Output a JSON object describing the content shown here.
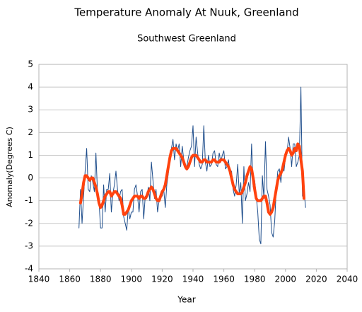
{
  "chart_data": {
    "type": "line",
    "title": "Temperature Anomaly At Nuuk, Greenland",
    "subtitle": "Southwest Greenland",
    "x_label": "Year",
    "y_label": "Anomaly(Degrees C)",
    "xlim": [
      1840,
      2040
    ],
    "xticks": [
      1840,
      1860,
      1880,
      1900,
      1920,
      1940,
      1960,
      1980,
      2000,
      2020,
      2040
    ],
    "ylim": [
      -4,
      5
    ],
    "yticks": [
      -4,
      -3,
      -2,
      -1,
      0,
      1,
      2,
      3,
      4,
      5
    ],
    "grid": true,
    "x": [
      1866,
      1867,
      1868,
      1869,
      1870,
      1871,
      1872,
      1873,
      1874,
      1875,
      1876,
      1877,
      1878,
      1879,
      1880,
      1881,
      1882,
      1883,
      1884,
      1885,
      1886,
      1887,
      1888,
      1889,
      1890,
      1891,
      1892,
      1893,
      1894,
      1895,
      1896,
      1897,
      1898,
      1899,
      1900,
      1901,
      1902,
      1903,
      1904,
      1905,
      1906,
      1907,
      1908,
      1909,
      1910,
      1911,
      1912,
      1913,
      1914,
      1915,
      1916,
      1917,
      1918,
      1919,
      1920,
      1921,
      1922,
      1923,
      1924,
      1925,
      1926,
      1927,
      1928,
      1929,
      1930,
      1931,
      1932,
      1933,
      1934,
      1935,
      1936,
      1937,
      1938,
      1939,
      1940,
      1941,
      1942,
      1943,
      1944,
      1945,
      1946,
      1947,
      1948,
      1949,
      1950,
      1951,
      1952,
      1953,
      1954,
      1955,
      1956,
      1957,
      1958,
      1959,
      1960,
      1961,
      1962,
      1963,
      1964,
      1965,
      1966,
      1967,
      1968,
      1969,
      1970,
      1971,
      1972,
      1973,
      1974,
      1975,
      1976,
      1977,
      1978,
      1979,
      1980,
      1981,
      1982,
      1983,
      1984,
      1985,
      1986,
      1987,
      1988,
      1989,
      1990,
      1991,
      1992,
      1993,
      1994,
      1995,
      1996,
      1997,
      1998,
      1999,
      2000,
      2001,
      2002,
      2003,
      2004,
      2005,
      2006,
      2007,
      2008,
      2009,
      2010,
      2011,
      2012,
      2013
    ],
    "series": [
      {
        "color": "#1f4e8c",
        "width": 1,
        "values": [
          -2.2,
          -0.5,
          -2.0,
          -0.8,
          0.3,
          1.3,
          -0.5,
          -0.6,
          0.1,
          -0.2,
          -0.6,
          1.1,
          -0.6,
          -1.0,
          -2.2,
          -2.2,
          -0.3,
          -1.5,
          -0.5,
          -0.5,
          0.2,
          -1.5,
          -0.7,
          -0.3,
          0.3,
          -0.5,
          -1.0,
          -0.6,
          -0.5,
          -1.7,
          -2.0,
          -2.3,
          -1.3,
          -1.8,
          -1.5,
          -1.5,
          -0.5,
          -0.3,
          -0.8,
          -1.5,
          -0.6,
          -0.5,
          -1.8,
          -0.8,
          -0.9,
          -0.4,
          -1.0,
          0.7,
          -0.1,
          -0.9,
          -0.5,
          -1.5,
          -1.0,
          -0.8,
          -0.8,
          -0.5,
          -1.3,
          -0.3,
          0.2,
          0.9,
          1.3,
          1.7,
          0.8,
          1.5,
          1.2,
          1.5,
          0.5,
          1.4,
          0.8,
          0.4,
          0.5,
          0.9,
          1.2,
          1.4,
          2.3,
          0.5,
          1.8,
          1.1,
          0.6,
          0.4,
          0.6,
          2.3,
          0.7,
          0.3,
          1.0,
          0.5,
          0.6,
          1.1,
          1.2,
          0.6,
          0.5,
          1.1,
          0.7,
          1.0,
          1.2,
          0.4,
          0.5,
          0.8,
          0.2,
          0.3,
          -0.5,
          -0.8,
          -0.3,
          0.6,
          -0.7,
          -0.2,
          -2.0,
          0.5,
          -1.0,
          -0.7,
          -0.2,
          -0.6,
          1.5,
          -0.4,
          -0.1,
          -0.8,
          -1.5,
          -2.7,
          -2.9,
          0.1,
          -0.9,
          1.6,
          -0.5,
          -0.8,
          -1.2,
          -2.4,
          -2.6,
          -1.9,
          -0.5,
          0.3,
          0.4,
          -0.2,
          0.6,
          0.3,
          0.9,
          1.1,
          1.8,
          1.3,
          0.5,
          1.5,
          1.5,
          0.5,
          0.7,
          1.0,
          4.0,
          -0.8,
          -0.5,
          -1.3
        ]
      },
      {
        "color": "#ff420e",
        "width": 4,
        "values": [
          null,
          -1.1,
          -0.7,
          -0.2,
          0.1,
          0.1,
          0.0,
          -0.1,
          0.0,
          0.0,
          -0.2,
          -0.4,
          -0.7,
          -1.1,
          -1.3,
          -1.2,
          -1.0,
          -0.8,
          -0.7,
          -0.6,
          -0.6,
          -0.8,
          -0.7,
          -0.6,
          -0.6,
          -0.7,
          -0.8,
          -0.9,
          -1.2,
          -1.6,
          -1.6,
          -1.5,
          -1.4,
          -1.2,
          -1.0,
          -0.9,
          -0.8,
          -0.8,
          -0.8,
          -0.9,
          -0.8,
          -0.8,
          -0.9,
          -0.9,
          -0.8,
          -0.6,
          -0.5,
          -0.4,
          -0.5,
          -0.7,
          -0.9,
          -1.0,
          -1.0,
          -0.8,
          -0.6,
          -0.5,
          -0.3,
          0.1,
          0.5,
          0.9,
          1.2,
          1.3,
          1.3,
          1.3,
          1.2,
          1.1,
          1.0,
          0.9,
          0.7,
          0.5,
          0.4,
          0.5,
          0.7,
          0.9,
          1.0,
          1.0,
          1.0,
          0.9,
          0.8,
          0.7,
          0.7,
          0.8,
          0.8,
          0.7,
          0.7,
          0.7,
          0.7,
          0.8,
          0.8,
          0.7,
          0.7,
          0.7,
          0.8,
          0.8,
          0.8,
          0.7,
          0.6,
          0.5,
          0.3,
          0.0,
          -0.3,
          -0.5,
          -0.6,
          -0.7,
          -0.7,
          -0.7,
          -0.6,
          -0.4,
          -0.2,
          0.1,
          0.3,
          0.5,
          0.4,
          0.0,
          -0.5,
          -0.9,
          -1.0,
          -1.0,
          -1.0,
          -0.9,
          -0.8,
          -0.8,
          -1.1,
          -1.5,
          -1.6,
          -1.5,
          -1.3,
          -0.9,
          -0.5,
          -0.1,
          0.1,
          0.2,
          0.4,
          0.7,
          1.0,
          1.2,
          1.3,
          1.2,
          1.0,
          1.1,
          1.3,
          1.2,
          1.5,
          1.4,
          0.8,
          0.3,
          -0.9,
          null
        ]
      }
    ]
  }
}
